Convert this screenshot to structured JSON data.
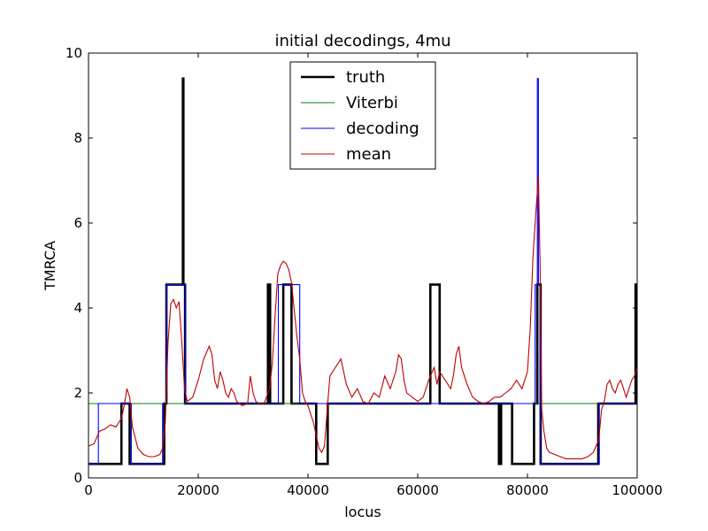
{
  "chart_data": {
    "type": "line",
    "title": "initial decodings, 4mu",
    "xlabel": "locus",
    "ylabel": "TMRCA",
    "xlim": [
      0,
      100000
    ],
    "ylim": [
      0,
      10
    ],
    "x_ticks": [
      0,
      20000,
      40000,
      60000,
      80000,
      100000
    ],
    "y_ticks": [
      0,
      2,
      4,
      6,
      8,
      10
    ],
    "x_tick_labels": [
      "0",
      "20000",
      "40000",
      "60000",
      "80000",
      "100000"
    ],
    "y_tick_labels": [
      "0",
      "2",
      "4",
      "6",
      "8",
      "10"
    ],
    "grid": false,
    "legend_position": "top-center",
    "series": [
      {
        "name": "truth",
        "color": "#000000",
        "style": "step",
        "x": [
          0,
          6000,
          7500,
          13800,
          14200,
          17200,
          17300,
          17600,
          17900,
          32700,
          33100,
          35500,
          36800,
          37000,
          41500,
          43600,
          62300,
          64000,
          74800,
          75200,
          77200,
          81200,
          81800,
          82400,
          92900,
          99700,
          100000
        ],
        "y": [
          0.33,
          1.75,
          0.33,
          1.75,
          4.55,
          9.4,
          4.55,
          1.75,
          1.75,
          4.55,
          1.75,
          4.55,
          4.55,
          1.75,
          0.33,
          1.75,
          4.55,
          1.75,
          0.33,
          1.75,
          0.33,
          1.75,
          4.55,
          0.33,
          1.75,
          4.55,
          4.55
        ]
      },
      {
        "name": "Viterbi",
        "color": "#008000",
        "style": "step",
        "x": [
          0,
          100000
        ],
        "y": [
          1.75,
          1.75
        ]
      },
      {
        "name": "decoding",
        "color": "#0000ff",
        "style": "step",
        "x": [
          0,
          1800,
          7800,
          13500,
          14200,
          17700,
          34600,
          38500,
          81400,
          81800,
          82000,
          82300,
          82500,
          93100,
          100000
        ],
        "y": [
          0.33,
          1.75,
          0.33,
          1.75,
          4.55,
          1.75,
          4.55,
          1.75,
          4.55,
          9.4,
          4.55,
          0.33,
          0.33,
          1.75,
          1.75
        ]
      },
      {
        "name": "mean",
        "color": "#c00000",
        "style": "line",
        "x": [
          0,
          1000,
          2000,
          3000,
          4000,
          5000,
          6000,
          6500,
          7000,
          7500,
          8000,
          9000,
          10000,
          11000,
          12000,
          13000,
          13500,
          14000,
          14500,
          15000,
          15500,
          16000,
          16500,
          17000,
          17500,
          18000,
          19000,
          20000,
          21000,
          22000,
          22500,
          23000,
          23500,
          24000,
          24500,
          25000,
          25500,
          26000,
          26500,
          27000,
          28000,
          29000,
          29500,
          30000,
          30500,
          31000,
          32000,
          33000,
          33500,
          34000,
          34500,
          35000,
          35500,
          36000,
          36500,
          37000,
          38000,
          38500,
          39000,
          39500,
          40000,
          41000,
          42000,
          42500,
          43000,
          43500,
          44000,
          45000,
          46000,
          47000,
          48000,
          49000,
          50000,
          51000,
          52000,
          53000,
          54000,
          55000,
          56000,
          56500,
          57000,
          57500,
          58000,
          59000,
          60000,
          61000,
          62000,
          63000,
          63500,
          64000,
          65000,
          66000,
          66500,
          67000,
          67500,
          68000,
          69000,
          70000,
          71000,
          72000,
          73000,
          74000,
          75000,
          76000,
          77000,
          78000,
          79000,
          80000,
          80500,
          81000,
          81500,
          82000,
          82300,
          82600,
          83000,
          83500,
          84000,
          85000,
          86000,
          87000,
          88000,
          89000,
          90000,
          91000,
          92000,
          93000,
          93500,
          94000,
          94500,
          95000,
          95500,
          96000,
          96500,
          97000,
          97500,
          98000,
          98500,
          99000,
          99500,
          100000
        ],
        "y": [
          0.75,
          0.8,
          1.1,
          1.15,
          1.25,
          1.2,
          1.4,
          1.7,
          2.1,
          1.9,
          1.2,
          0.7,
          0.55,
          0.5,
          0.5,
          0.55,
          0.7,
          1.3,
          3.2,
          4.1,
          4.2,
          4.0,
          4.15,
          3.2,
          2.1,
          1.8,
          1.9,
          2.3,
          2.8,
          3.1,
          2.9,
          2.3,
          2.1,
          2.5,
          2.3,
          2.0,
          1.9,
          2.1,
          2.0,
          1.8,
          1.7,
          1.75,
          2.4,
          2.0,
          1.8,
          1.75,
          1.75,
          2.1,
          2.7,
          3.8,
          4.8,
          5.0,
          5.1,
          5.05,
          4.9,
          4.6,
          3.3,
          2.8,
          2.0,
          1.8,
          1.7,
          1.3,
          0.7,
          0.6,
          0.75,
          1.6,
          2.4,
          2.6,
          2.8,
          2.2,
          1.9,
          2.1,
          1.8,
          1.75,
          2.0,
          1.9,
          2.4,
          2.1,
          2.5,
          2.9,
          2.8,
          2.3,
          2.0,
          1.9,
          1.8,
          1.9,
          2.3,
          2.6,
          2.2,
          2.5,
          2.3,
          2.1,
          2.4,
          2.9,
          3.1,
          2.6,
          2.2,
          1.9,
          1.8,
          1.75,
          1.8,
          1.9,
          1.9,
          2.0,
          2.1,
          2.3,
          2.1,
          2.5,
          3.5,
          5.2,
          6.2,
          7.1,
          5.0,
          1.6,
          1.1,
          0.7,
          0.6,
          0.55,
          0.5,
          0.45,
          0.45,
          0.45,
          0.45,
          0.5,
          0.6,
          0.9,
          1.6,
          1.8,
          2.2,
          2.3,
          2.1,
          2.0,
          2.2,
          2.3,
          2.1,
          1.9,
          2.1,
          2.3,
          2.4,
          2.6
        ]
      }
    ]
  }
}
